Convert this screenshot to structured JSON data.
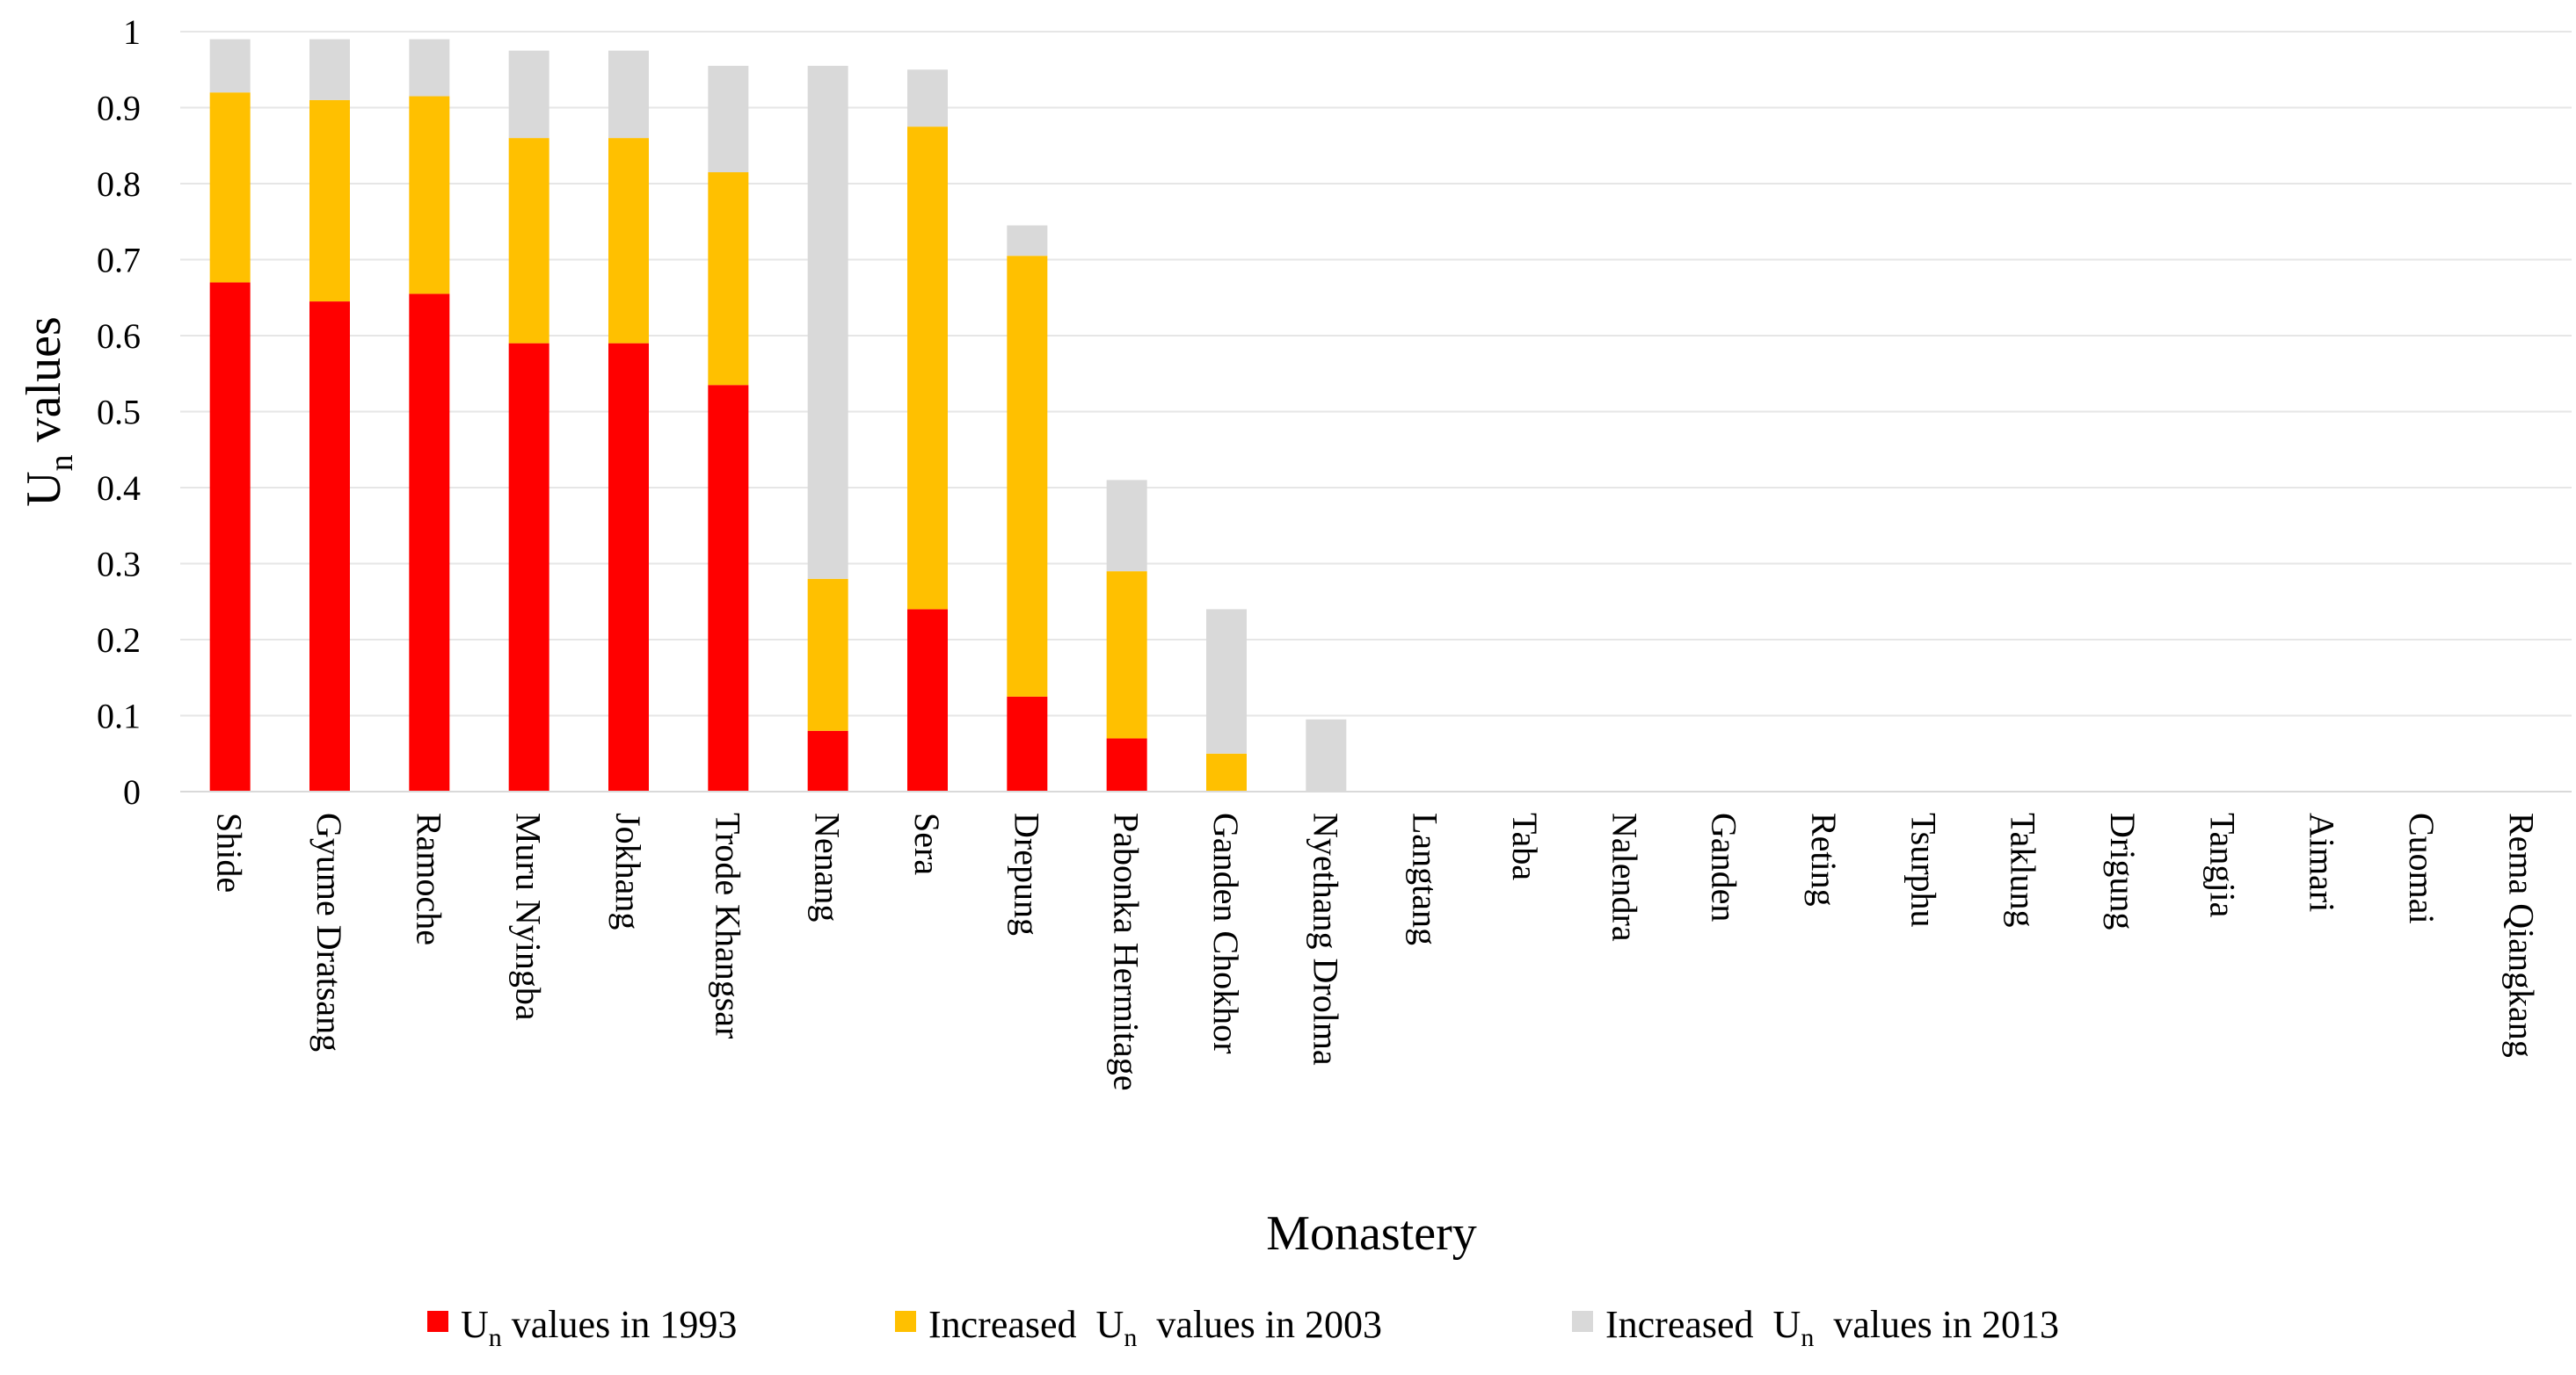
{
  "chart_data": {
    "type": "bar",
    "stacked": true,
    "title": "",
    "xlabel": "Monastery",
    "ylabel": {
      "main": "U",
      "sub": "n",
      "rest": " values"
    },
    "ylim": [
      0,
      1
    ],
    "ytick_labels": [
      "0",
      "0.1",
      "0.2",
      "0.3",
      "0.4",
      "0.5",
      "0.6",
      "0.7",
      "0.8",
      "0.9",
      "1"
    ],
    "grid": true,
    "legend_position": "bottom",
    "categories": [
      "Shide",
      "Gyume Dratsang",
      "Ramoche",
      "Muru Nyingba",
      "Jokhang",
      "Trode Khangsar",
      "Nenang",
      "Sera",
      "Drepung",
      "Pabonka Hermitage",
      "Ganden Chokhor",
      "Nyethang Drolma",
      "Langtang",
      "Taba",
      "Nalendra",
      "Ganden",
      "Reting",
      "Tsurphu",
      "Taklung",
      "Drigung",
      "Tangjia",
      "Aimari",
      "Cuomai",
      "Rema Qiangkang"
    ],
    "series": [
      {
        "name": "Un values in 1993",
        "legend": {
          "pre": "",
          "main": "U",
          "sub": "n",
          "post": " values in 1993"
        },
        "color": "#ff0000",
        "values": [
          0.67,
          0.645,
          0.655,
          0.59,
          0.59,
          0.535,
          0.08,
          0.24,
          0.125,
          0.07,
          0,
          0,
          0,
          0,
          0,
          0,
          0,
          0,
          0,
          0,
          0,
          0,
          0,
          0
        ]
      },
      {
        "name": "Increased Un values in 2003",
        "legend": {
          "pre": "Increased  ",
          "main": "U",
          "sub": "n",
          "post": "  values in 2003"
        },
        "color": "#ffc000",
        "values": [
          0.25,
          0.265,
          0.26,
          0.27,
          0.27,
          0.28,
          0.2,
          0.635,
          0.58,
          0.22,
          0.05,
          0,
          0,
          0,
          0,
          0,
          0,
          0,
          0,
          0,
          0,
          0,
          0,
          0
        ]
      },
      {
        "name": "Increased Un values in 2013",
        "legend": {
          "pre": "Increased  ",
          "main": "U",
          "sub": "n",
          "post": "  values in 2013"
        },
        "color": "#d9d9d9",
        "values": [
          0.07,
          0.08,
          0.075,
          0.115,
          0.115,
          0.14,
          0.675,
          0.075,
          0.04,
          0.12,
          0.19,
          0.095,
          0,
          0,
          0,
          0,
          0,
          0,
          0,
          0,
          0,
          0,
          0,
          0
        ]
      }
    ]
  }
}
